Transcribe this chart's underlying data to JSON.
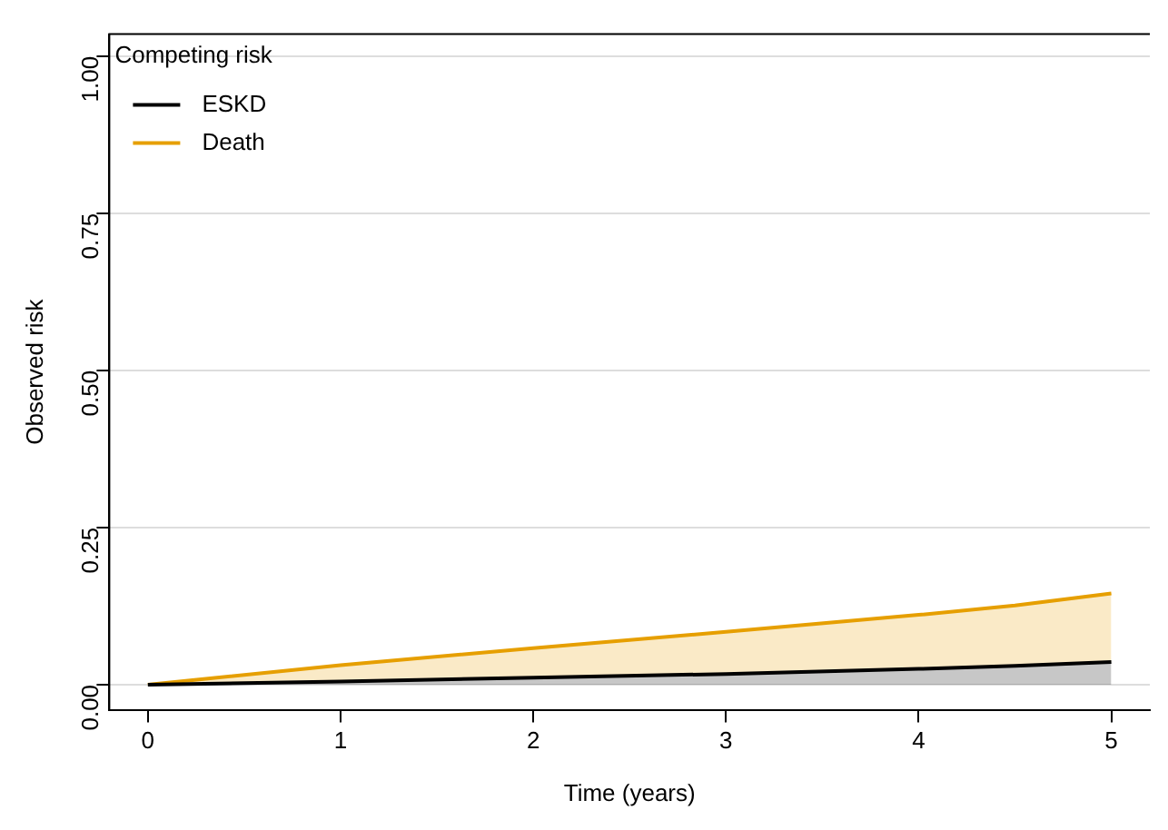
{
  "chart_data": {
    "type": "area",
    "xlabel": "Time (years)",
    "ylabel": "Observed risk",
    "legend_title": "Competing risk",
    "xlim": [
      -0.2,
      5.2
    ],
    "xticks": [
      0,
      1,
      2,
      3,
      4,
      5
    ],
    "ylim": [
      -0.04,
      1.035
    ],
    "yticks": [
      {
        "value": 0,
        "label": "0.00"
      },
      {
        "value": 0.25,
        "label": "0.25"
      },
      {
        "value": 0.5,
        "label": "0.50"
      },
      {
        "value": 0.75,
        "label": "0.75"
      },
      {
        "value": 1,
        "label": "1.00"
      }
    ],
    "grid": "y",
    "legend": "top left",
    "x": [
      0,
      1,
      2,
      3,
      4,
      4.5,
      5
    ],
    "series": [
      {
        "name": "ESKD",
        "color": "#000000",
        "values": [
          0,
          0.005,
          0.011,
          0.017,
          0.025,
          0.03,
          0.036
        ]
      },
      {
        "name": "Death",
        "color": "#e69f00",
        "values": [
          0,
          0.031,
          0.058,
          0.084,
          0.111,
          0.126,
          0.145
        ]
      }
    ]
  }
}
